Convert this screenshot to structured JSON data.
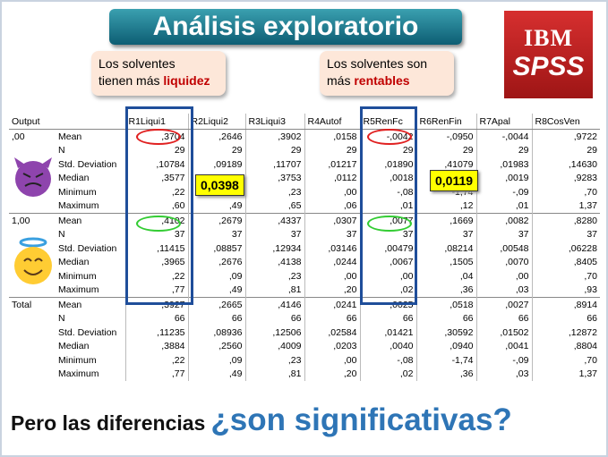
{
  "title": "Análisis exploratorio",
  "logo": {
    "brand": "IBM",
    "product": "SPSS"
  },
  "callouts": [
    {
      "lines": [
        "Los solventes",
        "tienen más"
      ],
      "highlight": "liquidez"
    },
    {
      "lines": [
        "Los solventes son",
        "más"
      ],
      "highlight": "rentables"
    }
  ],
  "highlights": [
    "0,0398",
    "0,0119"
  ],
  "table": {
    "columns": [
      "Output",
      "R1Liqui1",
      "R2Liqui2",
      "R3Liqui3",
      "R4Autof",
      "R5RenFc",
      "R6RenFin",
      "R7Apal",
      "R8CosVen"
    ],
    "groups": [
      {
        "label": ",00",
        "rows": [
          {
            "stat": "Mean",
            "cells": [
              ",3704",
              ",2646",
              ",3902",
              ",0158",
              "-,0042",
              "-,0950",
              "-,0044",
              ",9722"
            ]
          },
          {
            "stat": "N",
            "cells": [
              "29",
              "29",
              "29",
              "29",
              "29",
              "29",
              "29",
              "29"
            ]
          },
          {
            "stat": "Std. Deviation",
            "cells": [
              ",10784",
              ",09189",
              ",11707",
              ",01217",
              ",01890",
              ",41079",
              ",01983",
              ",14630"
            ]
          },
          {
            "stat": "Median",
            "cells": [
              ",3577",
              null,
              ",3753",
              ",0112",
              ",0018",
              null,
              ",0019",
              ",9283"
            ]
          },
          {
            "stat": "Minimum",
            "cells": [
              ",22",
              null,
              ",23",
              ",00",
              "-,08",
              "-1,74",
              "-,09",
              ",70"
            ]
          },
          {
            "stat": "Maximum",
            "cells": [
              ",60",
              ",49",
              ",65",
              ",06",
              ",01",
              ",12",
              ",01",
              "1,37"
            ]
          }
        ]
      },
      {
        "label": "1,00",
        "rows": [
          {
            "stat": "Mean",
            "cells": [
              ",4102",
              ",2679",
              ",4337",
              ",0307",
              ",0077",
              ",1669",
              ",0082",
              ",8280"
            ]
          },
          {
            "stat": "N",
            "cells": [
              "37",
              "37",
              "37",
              "37",
              "37",
              "37",
              "37",
              "37"
            ]
          },
          {
            "stat": "Std. Deviation",
            "cells": [
              ",11415",
              ",08857",
              ",12934",
              ",03146",
              ",00479",
              ",08214",
              ",00548",
              ",06228"
            ]
          },
          {
            "stat": "Median",
            "cells": [
              ",3965",
              ",2676",
              ",4138",
              ",0244",
              ",0067",
              ",1505",
              ",0070",
              ",8405"
            ]
          },
          {
            "stat": "Minimum",
            "cells": [
              ",22",
              ",09",
              ",23",
              ",00",
              ",00",
              ",04",
              ",00",
              ",70"
            ]
          },
          {
            "stat": "Maximum",
            "cells": [
              ",77",
              ",49",
              ",81",
              ",20",
              ",02",
              ",36",
              ",03",
              ",93"
            ]
          }
        ]
      },
      {
        "label": "Total",
        "rows": [
          {
            "stat": "Mean",
            "cells": [
              ",3927",
              ",2665",
              ",4146",
              ",0241",
              ",0025",
              ",0518",
              ",0027",
              ",8914"
            ]
          },
          {
            "stat": "N",
            "cells": [
              "66",
              "66",
              "66",
              "66",
              "66",
              "66",
              "66",
              "66"
            ]
          },
          {
            "stat": "Std. Deviation",
            "cells": [
              ",11235",
              ",08936",
              ",12506",
              ",02584",
              ",01421",
              ",30592",
              ",01502",
              ",12872"
            ]
          },
          {
            "stat": "Median",
            "cells": [
              ",3884",
              ",2560",
              ",4009",
              ",0203",
              ",0040",
              ",0940",
              ",0041",
              ",8804"
            ]
          },
          {
            "stat": "Minimum",
            "cells": [
              ",22",
              ",09",
              ",23",
              ",00",
              "-,08",
              "-1,74",
              "-,09",
              ",70"
            ]
          },
          {
            "stat": "Maximum",
            "cells": [
              ",77",
              ",49",
              ",81",
              ",20",
              ",02",
              ",36",
              ",03",
              "1,37"
            ]
          }
        ]
      }
    ]
  },
  "footer": {
    "lead": "Pero las diferencias",
    "question": "¿son significativas?"
  }
}
